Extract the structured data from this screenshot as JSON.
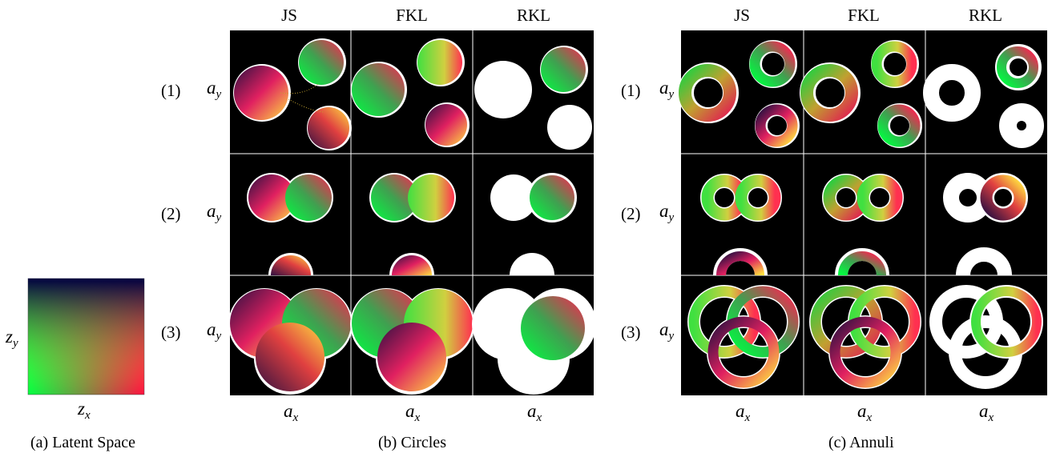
{
  "figure": {
    "latent": {
      "caption": "(a) Latent Space",
      "xlabel": "z",
      "xlabel_sub": "x",
      "ylabel": "z",
      "ylabel_sub": "y",
      "gradient_corners": {
        "top_left": "#000040",
        "top_right": "#ff1040",
        "bottom_left": "#00ff40",
        "bottom_right": "#ffff40"
      }
    },
    "circles": {
      "caption": "(b) Circles",
      "columns": [
        "JS",
        "FKL",
        "RKL"
      ],
      "rows": [
        "(1)",
        "(2)",
        "(3)"
      ],
      "ylabel": "a",
      "ylabel_sub": "y",
      "xlabel": "a",
      "xlabel_sub": "x"
    },
    "annuli": {
      "caption": "(c) Annuli",
      "columns": [
        "JS",
        "FKL",
        "RKL"
      ],
      "rows": [
        "(1)",
        "(2)",
        "(3)"
      ],
      "ylabel": "a",
      "ylabel_sub": "y",
      "xlabel": "a",
      "xlabel_sub": "x"
    }
  }
}
